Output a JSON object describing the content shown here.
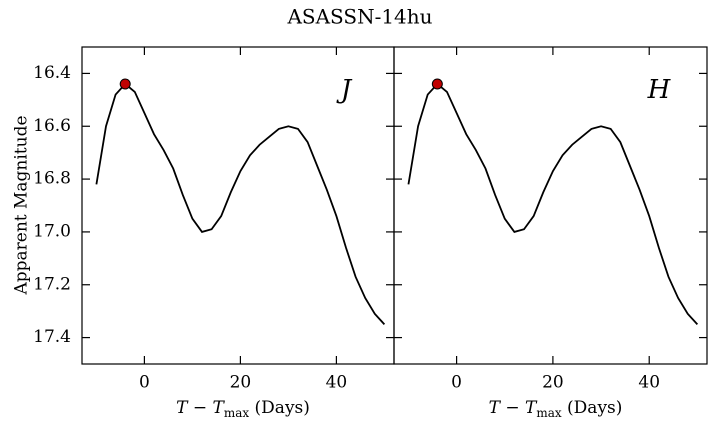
{
  "title": "ASASSN-14hu",
  "ylabel": "Apparent Magnitude",
  "chart_data": [
    {
      "type": "line",
      "panel_label": "J",
      "xlabel": [
        "T − T",
        "max",
        " (Days)"
      ],
      "x": [
        -10,
        -8,
        -6,
        -4,
        -2,
        0,
        2,
        4,
        6,
        8,
        10,
        12,
        14,
        16,
        18,
        20,
        22,
        24,
        26,
        28,
        30,
        32,
        34,
        36,
        38,
        40,
        42,
        44,
        46,
        48,
        50
      ],
      "series": [
        {
          "color": "#000000",
          "values": [
            16.82,
            16.6,
            16.48,
            16.44,
            16.47,
            16.55,
            16.63,
            16.69,
            16.76,
            16.86,
            16.95,
            17.0,
            16.99,
            16.94,
            16.85,
            16.77,
            16.71,
            16.67,
            16.64,
            16.61,
            16.6,
            16.61,
            16.66,
            16.75,
            16.84,
            16.94,
            17.06,
            17.17,
            17.25,
            17.31,
            17.35
          ]
        }
      ],
      "peak": {
        "x": -4,
        "y": 16.44,
        "color": "#c00000"
      },
      "xlim": [
        -13,
        52
      ],
      "xticks": [
        0,
        20,
        40
      ],
      "ylim": [
        16.3,
        17.5
      ],
      "invert_y": true,
      "yticks": [
        16.4,
        16.6,
        16.8,
        {
          "value": 17,
          "label": "17.0"
        },
        17.2,
        17.4
      ]
    },
    {
      "type": "line",
      "panel_label": "H",
      "xlabel": [
        "T − T",
        "max",
        " (Days)"
      ],
      "x": [
        -10,
        -8,
        -6,
        -4,
        -2,
        0,
        2,
        4,
        6,
        8,
        10,
        12,
        14,
        16,
        18,
        20,
        22,
        24,
        26,
        28,
        30,
        32,
        34,
        36,
        38,
        40,
        42,
        44,
        46,
        48,
        50
      ],
      "series": [
        {
          "color": "#000000",
          "values": [
            16.82,
            16.6,
            16.48,
            16.44,
            16.47,
            16.55,
            16.63,
            16.69,
            16.76,
            16.86,
            16.95,
            17.0,
            16.99,
            16.94,
            16.85,
            16.77,
            16.71,
            16.67,
            16.64,
            16.61,
            16.6,
            16.61,
            16.66,
            16.75,
            16.84,
            16.94,
            17.06,
            17.17,
            17.25,
            17.31,
            17.35
          ]
        }
      ],
      "peak": {
        "x": -4,
        "y": 16.44,
        "color": "#c00000"
      },
      "xlim": [
        -13,
        52
      ],
      "xticks": [
        0,
        20,
        40
      ],
      "ylim": [
        16.3,
        17.5
      ],
      "invert_y": true,
      "yticks": [
        16.4,
        16.6,
        16.8,
        17,
        17.2,
        17.4
      ]
    }
  ]
}
